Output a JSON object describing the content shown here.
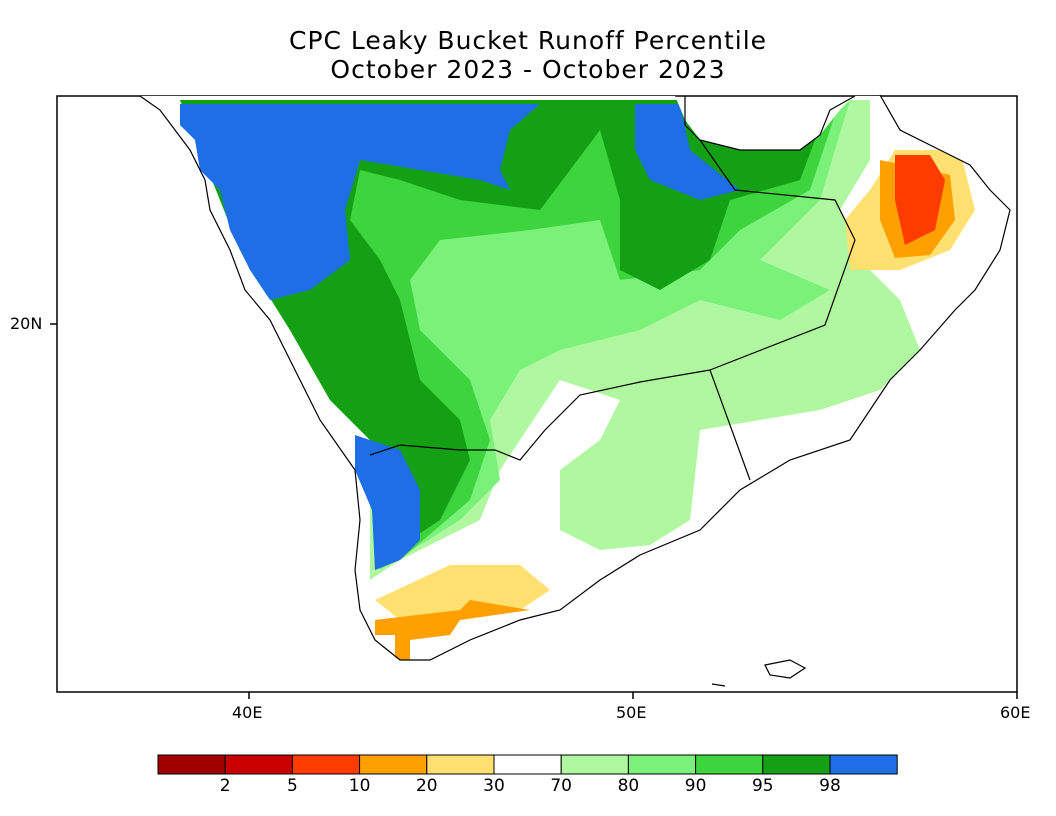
{
  "title": {
    "line1": "CPC Leaky Bucket Runoff Percentile",
    "line2": "October 2023 - October 2023"
  },
  "axes": {
    "x_ticks": [
      "40E",
      "50E",
      "60E"
    ],
    "y_ticks": [
      "20N"
    ]
  },
  "legend": {
    "colors": [
      "#a00000",
      "#c80000",
      "#ff3c00",
      "#ff9f00",
      "#ffe070",
      "#ffffff",
      "#b0f8a0",
      "#7af27a",
      "#3ed43e",
      "#14a014",
      "#1e6ee6"
    ],
    "labels": [
      "2",
      "5",
      "10",
      "20",
      "30",
      "70",
      "80",
      "90",
      "95",
      "98"
    ]
  },
  "colors": {
    "blue_98": "#1e6ee6",
    "dkgreen_95": "#14a014",
    "green_90": "#3ed43e",
    "ltgreen_80": "#7af27a",
    "paleg_70": "#b0f8a0",
    "yellow_30": "#ffe070",
    "orange_20": "#ff9f00",
    "red_10": "#ff3c00"
  }
}
